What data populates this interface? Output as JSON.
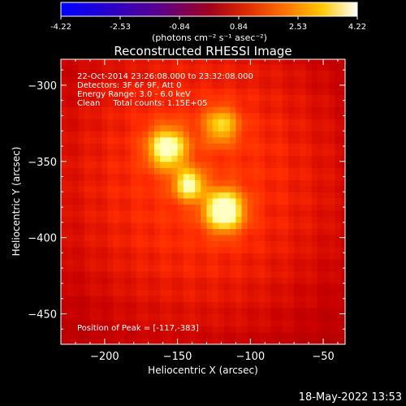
{
  "colorbar": {
    "ticks": [
      "-4.22",
      "-2.53",
      "-0.84",
      "0.84",
      "2.53",
      "4.22"
    ],
    "unit_label": "(photons cm⁻² s⁻¹ asec⁻²)",
    "range": [
      -4.22,
      4.22
    ]
  },
  "chart_data": {
    "type": "heatmap",
    "title": "Reconstructed RHESSI Image",
    "xlabel": "Heliocentric X (arcsec)",
    "ylabel": "Heliocentric Y (arcsec)",
    "xlim": [
      -230,
      -35
    ],
    "ylim": [
      -470,
      -283
    ],
    "x_ticks": [
      -200,
      -150,
      -100,
      -50
    ],
    "y_ticks": [
      -300,
      -350,
      -400,
      -450
    ],
    "x_tick_labels": [
      "−200",
      "−150",
      "−100",
      "−50"
    ],
    "y_tick_labels": [
      "−300",
      "−350",
      "−400",
      "−450"
    ],
    "sources": [
      {
        "x": -118,
        "y": -382,
        "sigma": 9,
        "amp": 1.0
      },
      {
        "x": -142,
        "y": -365,
        "sigma": 7,
        "amp": 0.75
      },
      {
        "x": -157,
        "y": -341,
        "sigma": 9,
        "amp": 0.85
      },
      {
        "x": -120,
        "y": -326,
        "sigma": 8,
        "amp": 0.55
      }
    ],
    "annotations": [
      "22-Oct-2014 23:26:08.000 to 23:32:08.000",
      "Detectors: 3F 6F 9F, Att 0",
      "Energy Range: 3.0 - 6.0 keV",
      "Clean     Total counts: 1.15E+05"
    ],
    "peak_label": "Position of Peak = [-117,-383]"
  },
  "footer": {
    "timestamp": "18-May-2022 13:53"
  }
}
